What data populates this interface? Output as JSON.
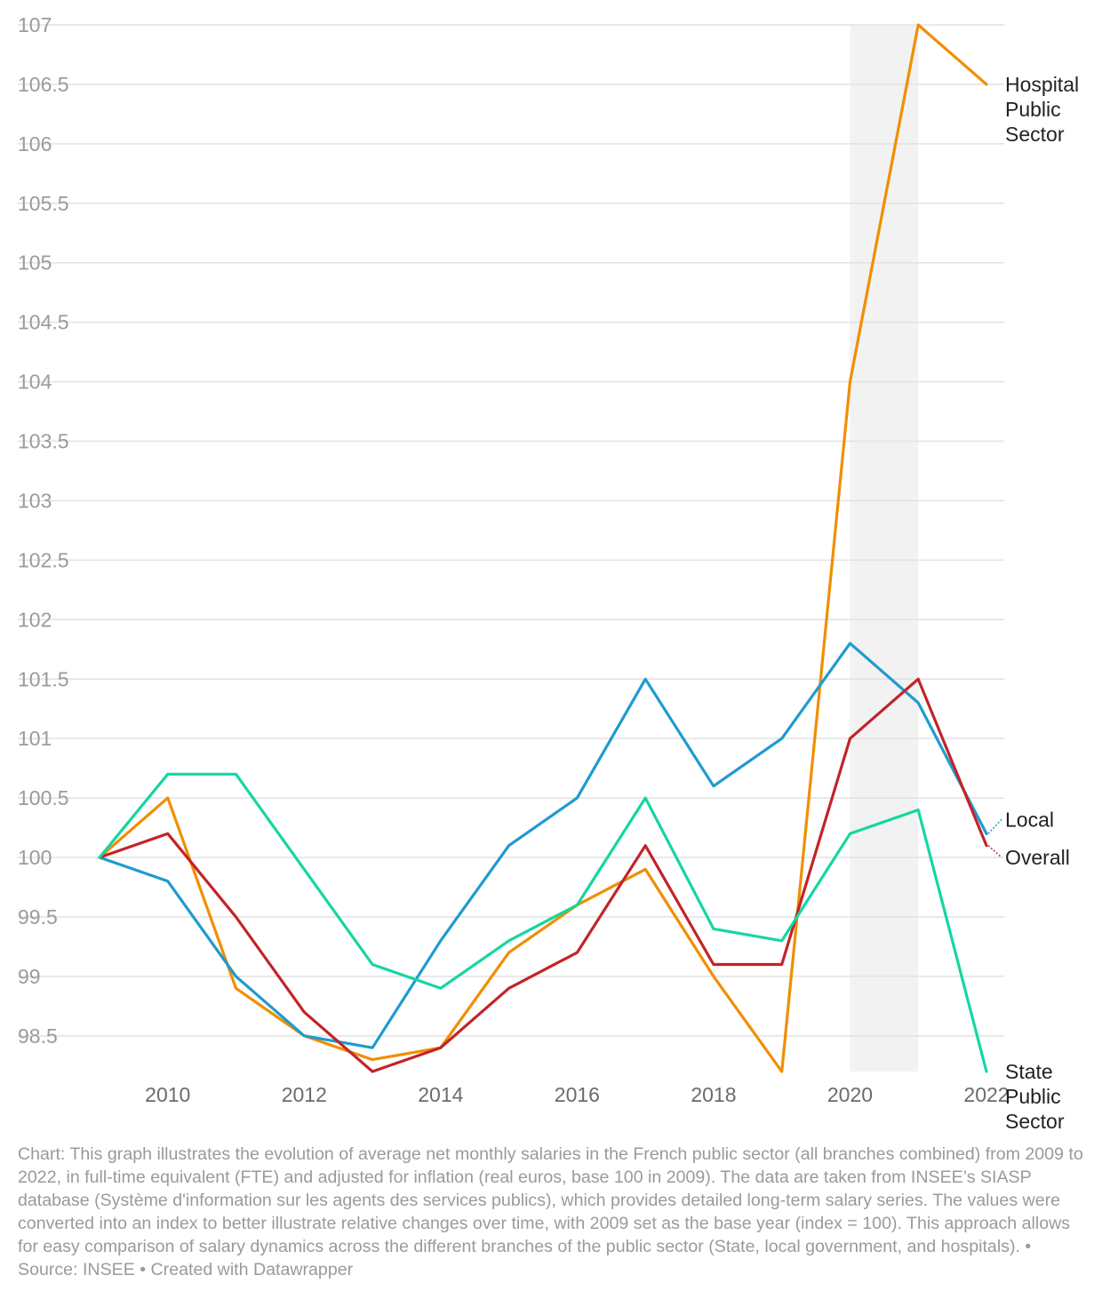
{
  "chart_data": {
    "type": "line",
    "title": "",
    "xlabel": "",
    "ylabel": "",
    "x": [
      2009,
      2010,
      2011,
      2012,
      2013,
      2014,
      2015,
      2016,
      2017,
      2018,
      2019,
      2020,
      2021,
      2022
    ],
    "x_ticks": [
      "2010",
      "2012",
      "2014",
      "2016",
      "2018",
      "2020",
      "2022"
    ],
    "y_ticks": [
      "107",
      "106.5",
      "106",
      "105.5",
      "105",
      "104.5",
      "104",
      "103.5",
      "103",
      "102.5",
      "102",
      "101.5",
      "101",
      "100.5",
      "100",
      "99.5",
      "99",
      "98.5"
    ],
    "ylim": [
      98.2,
      107
    ],
    "xlim": [
      2009,
      2022
    ],
    "highlight_band": {
      "from": 2020,
      "to": 2021,
      "color": "#f2f2f2"
    },
    "grid": true,
    "series": [
      {
        "name": "Hospital Public Sector",
        "label_lines": [
          "Hospital",
          "Public",
          "Sector"
        ],
        "color": "#f18e00",
        "values": [
          100,
          100.5,
          98.9,
          98.5,
          98.3,
          98.4,
          99.2,
          99.6,
          99.9,
          99.0,
          98.2,
          104.0,
          107.0,
          106.5
        ]
      },
      {
        "name": "Local",
        "label_lines": [
          "Local"
        ],
        "color": "#1f9bcf",
        "values": [
          100,
          99.8,
          99.0,
          98.5,
          98.4,
          99.3,
          100.1,
          100.5,
          101.5,
          100.6,
          101.0,
          101.8,
          101.3,
          100.2
        ]
      },
      {
        "name": "Overall",
        "label_lines": [
          "Overall"
        ],
        "color": "#c22428",
        "values": [
          100,
          100.2,
          99.5,
          98.7,
          98.2,
          98.4,
          98.9,
          99.2,
          100.1,
          99.1,
          99.1,
          101.0,
          101.5,
          100.1
        ]
      },
      {
        "name": "State Public Sector",
        "label_lines": [
          "State",
          "Public",
          "Sector"
        ],
        "color": "#15d6a3",
        "values": [
          100,
          100.7,
          100.7,
          99.9,
          99.1,
          98.9,
          99.3,
          99.6,
          100.5,
          99.4,
          99.3,
          100.2,
          100.4,
          98.2
        ]
      }
    ]
  },
  "footer": {
    "text": "Chart: This graph illustrates the evolution of average net monthly salaries in the French public sector (all branches combined) from 2009 to 2022, in full-time equivalent (FTE) and adjusted for inflation (real euros, base 100 in 2009). The data are taken from INSEE’s SIASP database (Système d'information sur les agents des services publics), which provides detailed long-term salary series. The values were converted into an index to better illustrate relative changes over time, with 2009 set as the base year (index = 100). This approach allows for easy comparison of salary dynamics across the different branches of the public sector (State, local government, and hospitals).",
    "source": "  • Source: INSEE",
    "credit": " • Created with Datawrapper"
  }
}
